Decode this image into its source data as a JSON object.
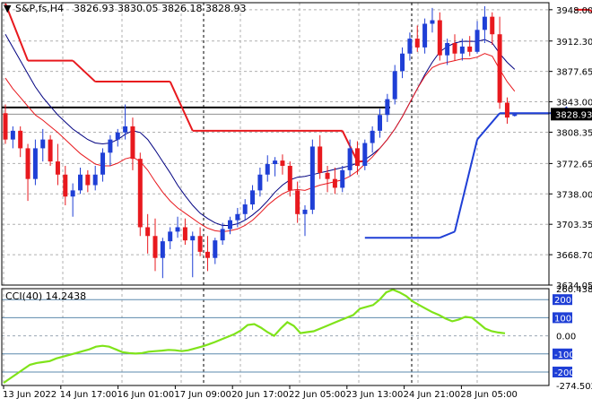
{
  "header": {
    "symbol_text": "S&P,fs,H4",
    "ohlc_text": "3826.93 3830.05 3826.18 3828.93"
  },
  "indicator": {
    "label": "CCI(40) 14.2438"
  },
  "colors": {
    "background": "#ffffff",
    "frame": "#000000",
    "grid": "#b0b0b0",
    "bull_candle": "#1f3fd6",
    "bear_candle": "#e8191e",
    "fast_ma": "#e8191e",
    "slow_ma": "#000080",
    "stop_red": "#e8191e",
    "stop_blue": "#1f3fd6",
    "hline": "#000000",
    "cci_line": "#7fe31a",
    "cci_levels": "#5b89ad",
    "cci_badge_bg": "#1f3fd6",
    "price_badge_bg": "#000000",
    "text": "#000000"
  },
  "chart_data": [
    {
      "type": "candlestick",
      "title": "",
      "ylim": [
        3634.05,
        3956.0
      ],
      "y_ticks": [
        "3948.00",
        "3912.30",
        "3877.65",
        "3843.00",
        "3808.35",
        "3772.65",
        "3738.00",
        "3703.35",
        "3668.70",
        "3634.05"
      ],
      "current_price": "3828.93",
      "horizontal_level": 3836.5,
      "x_tick_labels": [
        "13 Jun 2022",
        "14 Jun 17:00",
        "16 Jun 01:00",
        "17 Jun 09:00",
        "20 Jun 17:00",
        "22 Jun 05:00",
        "23 Jun 13:00",
        "24 Jun 21:00",
        "28 Jun 05:00"
      ],
      "candles": [
        {
          "o": 3830,
          "h": 3840,
          "l": 3795,
          "c": 3800
        },
        {
          "o": 3800,
          "h": 3815,
          "l": 3790,
          "c": 3810
        },
        {
          "o": 3810,
          "h": 3815,
          "l": 3780,
          "c": 3790
        },
        {
          "o": 3790,
          "h": 3795,
          "l": 3730,
          "c": 3755
        },
        {
          "o": 3755,
          "h": 3800,
          "l": 3748,
          "c": 3790
        },
        {
          "o": 3790,
          "h": 3812,
          "l": 3775,
          "c": 3800
        },
        {
          "o": 3800,
          "h": 3805,
          "l": 3770,
          "c": 3775
        },
        {
          "o": 3775,
          "h": 3795,
          "l": 3748,
          "c": 3760
        },
        {
          "o": 3760,
          "h": 3770,
          "l": 3725,
          "c": 3735
        },
        {
          "o": 3735,
          "h": 3750,
          "l": 3712,
          "c": 3742
        },
        {
          "o": 3742,
          "h": 3768,
          "l": 3738,
          "c": 3760
        },
        {
          "o": 3760,
          "h": 3765,
          "l": 3740,
          "c": 3748
        },
        {
          "o": 3748,
          "h": 3770,
          "l": 3742,
          "c": 3760
        },
        {
          "o": 3760,
          "h": 3790,
          "l": 3752,
          "c": 3785
        },
        {
          "o": 3785,
          "h": 3805,
          "l": 3770,
          "c": 3800
        },
        {
          "o": 3800,
          "h": 3812,
          "l": 3792,
          "c": 3808
        },
        {
          "o": 3808,
          "h": 3840,
          "l": 3800,
          "c": 3815
        },
        {
          "o": 3815,
          "h": 3825,
          "l": 3765,
          "c": 3778
        },
        {
          "o": 3778,
          "h": 3785,
          "l": 3690,
          "c": 3700
        },
        {
          "o": 3700,
          "h": 3715,
          "l": 3670,
          "c": 3690
        },
        {
          "o": 3690,
          "h": 3710,
          "l": 3650,
          "c": 3665
        },
        {
          "o": 3665,
          "h": 3688,
          "l": 3642,
          "c": 3684
        },
        {
          "o": 3684,
          "h": 3700,
          "l": 3675,
          "c": 3695
        },
        {
          "o": 3695,
          "h": 3712,
          "l": 3688,
          "c": 3700
        },
        {
          "o": 3700,
          "h": 3710,
          "l": 3680,
          "c": 3685
        },
        {
          "o": 3685,
          "h": 3695,
          "l": 3643,
          "c": 3690
        },
        {
          "o": 3690,
          "h": 3700,
          "l": 3667,
          "c": 3672
        },
        {
          "o": 3672,
          "h": 3690,
          "l": 3650,
          "c": 3665
        },
        {
          "o": 3665,
          "h": 3688,
          "l": 3658,
          "c": 3685
        },
        {
          "o": 3685,
          "h": 3705,
          "l": 3680,
          "c": 3698
        },
        {
          "o": 3698,
          "h": 3712,
          "l": 3692,
          "c": 3708
        },
        {
          "o": 3708,
          "h": 3722,
          "l": 3700,
          "c": 3715
        },
        {
          "o": 3715,
          "h": 3732,
          "l": 3708,
          "c": 3726
        },
        {
          "o": 3726,
          "h": 3748,
          "l": 3720,
          "c": 3742
        },
        {
          "o": 3742,
          "h": 3768,
          "l": 3735,
          "c": 3760
        },
        {
          "o": 3760,
          "h": 3782,
          "l": 3752,
          "c": 3772
        },
        {
          "o": 3772,
          "h": 3780,
          "l": 3758,
          "c": 3776
        },
        {
          "o": 3776,
          "h": 3783,
          "l": 3760,
          "c": 3770
        },
        {
          "o": 3770,
          "h": 3775,
          "l": 3735,
          "c": 3742
        },
        {
          "o": 3742,
          "h": 3752,
          "l": 3705,
          "c": 3715
        },
        {
          "o": 3715,
          "h": 3725,
          "l": 3690,
          "c": 3720
        },
        {
          "o": 3720,
          "h": 3800,
          "l": 3715,
          "c": 3792
        },
        {
          "o": 3792,
          "h": 3805,
          "l": 3755,
          "c": 3762
        },
        {
          "o": 3762,
          "h": 3770,
          "l": 3740,
          "c": 3755
        },
        {
          "o": 3755,
          "h": 3768,
          "l": 3738,
          "c": 3745
        },
        {
          "o": 3745,
          "h": 3770,
          "l": 3740,
          "c": 3765
        },
        {
          "o": 3765,
          "h": 3800,
          "l": 3758,
          "c": 3790
        },
        {
          "o": 3790,
          "h": 3798,
          "l": 3760,
          "c": 3770
        },
        {
          "o": 3770,
          "h": 3800,
          "l": 3765,
          "c": 3796
        },
        {
          "o": 3796,
          "h": 3815,
          "l": 3785,
          "c": 3810
        },
        {
          "o": 3810,
          "h": 3835,
          "l": 3802,
          "c": 3828
        },
        {
          "o": 3828,
          "h": 3852,
          "l": 3820,
          "c": 3846
        },
        {
          "o": 3846,
          "h": 3885,
          "l": 3840,
          "c": 3878
        },
        {
          "o": 3878,
          "h": 3905,
          "l": 3870,
          "c": 3898
        },
        {
          "o": 3898,
          "h": 3922,
          "l": 3890,
          "c": 3915
        },
        {
          "o": 3915,
          "h": 3930,
          "l": 3900,
          "c": 3905
        },
        {
          "o": 3905,
          "h": 3938,
          "l": 3898,
          "c": 3932
        },
        {
          "o": 3932,
          "h": 3950,
          "l": 3922,
          "c": 3936
        },
        {
          "o": 3936,
          "h": 3945,
          "l": 3890,
          "c": 3896
        },
        {
          "o": 3896,
          "h": 3915,
          "l": 3885,
          "c": 3910
        },
        {
          "o": 3910,
          "h": 3920,
          "l": 3890,
          "c": 3898
        },
        {
          "o": 3898,
          "h": 3915,
          "l": 3890,
          "c": 3906
        },
        {
          "o": 3906,
          "h": 3918,
          "l": 3895,
          "c": 3900
        },
        {
          "o": 3900,
          "h": 3935,
          "l": 3898,
          "c": 3925
        },
        {
          "o": 3925,
          "h": 3952,
          "l": 3910,
          "c": 3940
        },
        {
          "o": 3940,
          "h": 3945,
          "l": 3908,
          "c": 3920
        },
        {
          "o": 3920,
          "h": 3940,
          "l": 3835,
          "c": 3842
        },
        {
          "o": 3842,
          "h": 3848,
          "l": 3818,
          "c": 3825
        },
        {
          "o": 3826.93,
          "h": 3830.05,
          "l": 3826.18,
          "c": 3828.93
        }
      ],
      "fast_ma": [
        3870,
        3858,
        3848,
        3838,
        3828,
        3822,
        3815,
        3808,
        3800,
        3792,
        3784,
        3778,
        3772,
        3770,
        3770,
        3773,
        3778,
        3780,
        3775,
        3765,
        3752,
        3740,
        3730,
        3722,
        3716,
        3710,
        3704,
        3699,
        3696,
        3695,
        3696,
        3698,
        3702,
        3708,
        3716,
        3725,
        3732,
        3738,
        3742,
        3743,
        3742,
        3745,
        3748,
        3750,
        3752,
        3754,
        3758,
        3764,
        3772,
        3780,
        3790,
        3800,
        3812,
        3826,
        3842,
        3858,
        3872,
        3882,
        3886,
        3888,
        3890,
        3892,
        3892,
        3894,
        3898,
        3895,
        3880,
        3866,
        3855
      ],
      "slow_ma": [
        3920,
        3905,
        3890,
        3875,
        3860,
        3848,
        3838,
        3828,
        3820,
        3812,
        3806,
        3800,
        3796,
        3795,
        3796,
        3800,
        3806,
        3810,
        3808,
        3800,
        3788,
        3775,
        3762,
        3748,
        3736,
        3725,
        3716,
        3710,
        3705,
        3702,
        3702,
        3704,
        3708,
        3714,
        3721,
        3730,
        3740,
        3748,
        3754,
        3757,
        3758,
        3760,
        3762,
        3764,
        3766,
        3768,
        3770,
        3773,
        3777,
        3783,
        3790,
        3800,
        3812,
        3826,
        3842,
        3858,
        3874,
        3888,
        3900,
        3906,
        3910,
        3912,
        3912,
        3912,
        3914,
        3910,
        3898,
        3888,
        3880
      ],
      "stop_red": [
        {
          "x0": 0,
          "x1": 3,
          "y0": 3955,
          "y1": 3890
        },
        {
          "x0": 3,
          "x1": 9,
          "y0": 3890,
          "y1": 3890
        },
        {
          "x0": 9,
          "x1": 12,
          "y0": 3890,
          "y1": 3866
        },
        {
          "x0": 12,
          "x1": 22,
          "y0": 3866,
          "y1": 3866
        },
        {
          "x0": 22,
          "x1": 25,
          "y0": 3866,
          "y1": 3810
        },
        {
          "x0": 25,
          "x1": 45,
          "y0": 3810,
          "y1": 3810
        },
        {
          "x0": 45,
          "x1": 47,
          "y0": 3810,
          "y1": 3775
        },
        {
          "x0": 47,
          "x1": 48,
          "y0": 3775,
          "y1": 3775
        },
        {
          "x0": 76,
          "x1": 78,
          "y0": 3948,
          "y1": 3948
        },
        {
          "x0": 78,
          "x1": 79,
          "y0": 3948,
          "y1": 3940
        }
      ],
      "stop_blue": [
        {
          "x0": 48,
          "x1": 58,
          "y0": 3688,
          "y1": 3688
        },
        {
          "x0": 58,
          "x1": 60,
          "y0": 3688,
          "y1": 3695
        },
        {
          "x0": 60,
          "x1": 63,
          "y0": 3695,
          "y1": 3800
        },
        {
          "x0": 63,
          "x1": 66,
          "y0": 3800,
          "y1": 3830
        },
        {
          "x0": 66,
          "x1": 74,
          "y0": 3830,
          "y1": 3830
        },
        {
          "x0": 74,
          "x1": 75,
          "y0": 3830,
          "y1": 3837
        }
      ]
    },
    {
      "type": "line",
      "title": "CCI(40) 14.2438",
      "ylim": [
        -274.5024,
        260.4386
      ],
      "y_ticks": [
        "260.4386",
        "200",
        "100",
        "0.00",
        "-100",
        "-200",
        "-274.5024"
      ],
      "levels": [
        200,
        100,
        -100,
        -200
      ],
      "series": [
        {
          "values": [
            -260,
            -235,
            -210,
            -185,
            -160,
            -150,
            -145,
            -140,
            -125,
            -115,
            -105,
            -95,
            -85,
            -75,
            -60,
            -55,
            -60,
            -75,
            -90,
            -95,
            -98,
            -95,
            -88,
            -85,
            -82,
            -78,
            -80,
            -85,
            -80,
            -70,
            -60,
            -48,
            -35,
            -20,
            -5,
            10,
            30,
            60,
            65,
            45,
            20,
            0,
            40,
            75,
            55,
            15,
            20,
            25,
            40,
            55,
            70,
            85,
            100,
            115,
            150,
            160,
            170,
            200,
            240,
            255,
            240,
            220,
            190,
            170,
            150,
            130,
            115,
            95,
            80,
            90,
            105,
            100,
            70,
            40,
            25,
            18,
            14
          ]
        }
      ]
    }
  ]
}
